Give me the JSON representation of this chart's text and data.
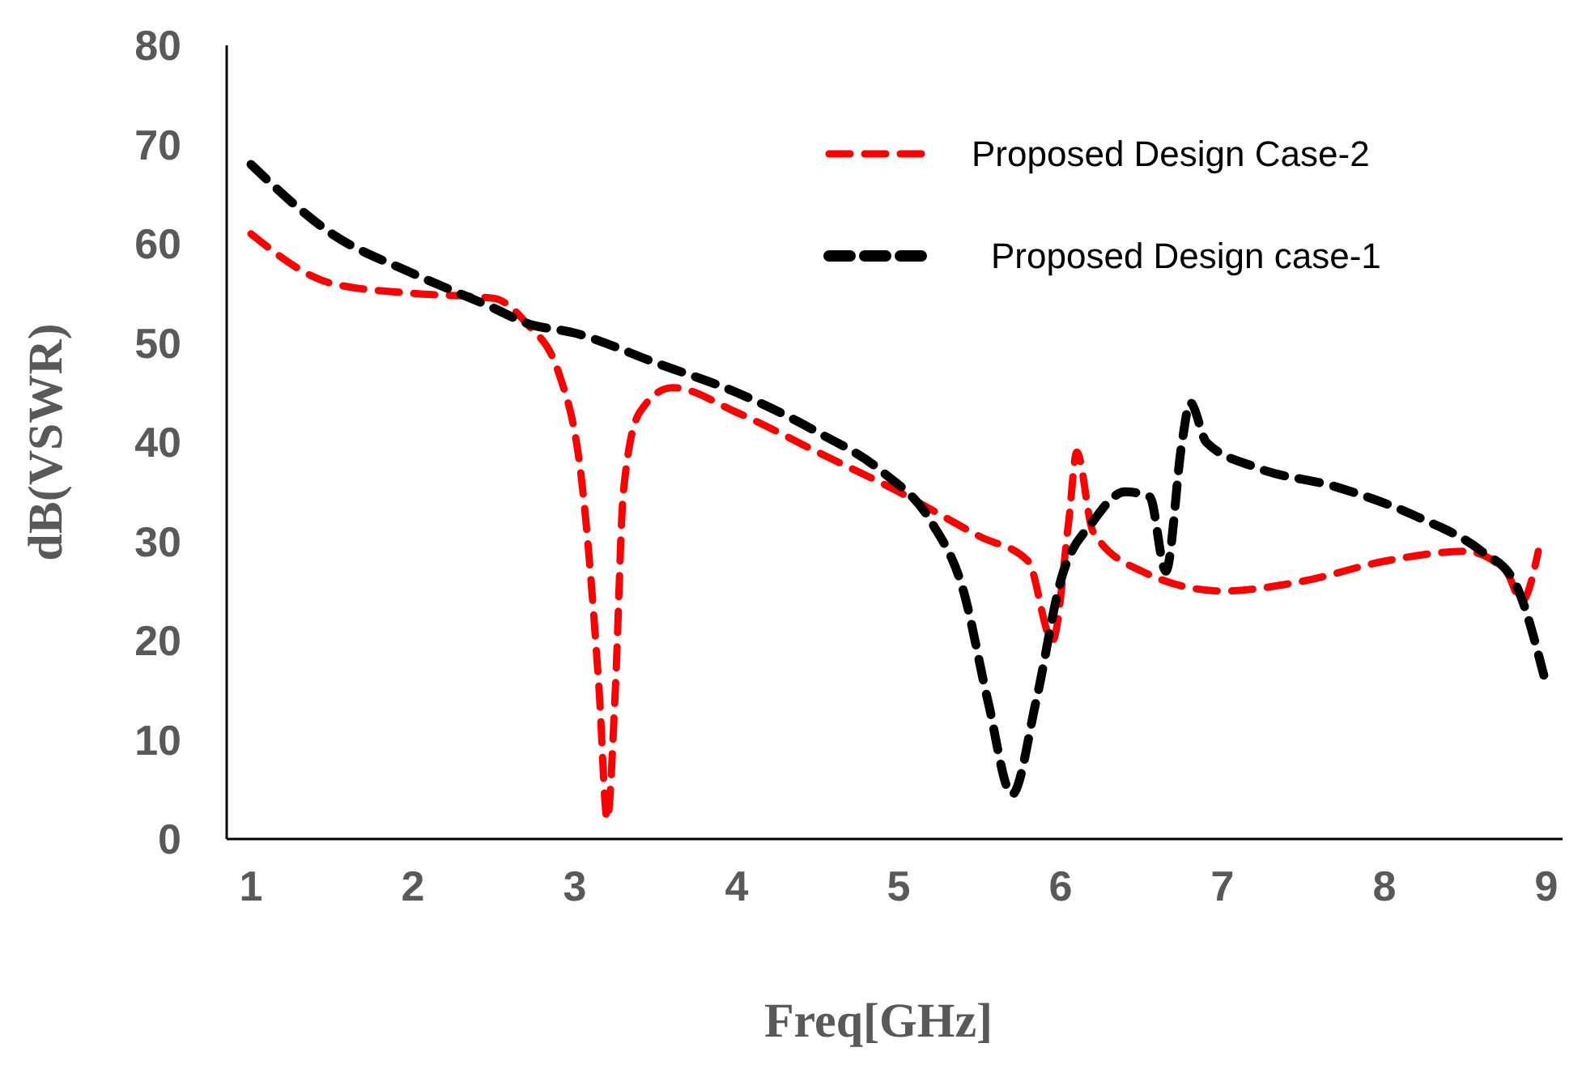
{
  "chart_data": {
    "type": "line",
    "xlabel": "Freq[GHz]",
    "ylabel": "dB(VSWR)",
    "xlim": [
      0.85,
      9.1
    ],
    "xticks": [
      1,
      2,
      3,
      4,
      5,
      6,
      7,
      8,
      9
    ],
    "ylim": [
      0,
      80
    ],
    "yticks": [
      0,
      10,
      20,
      30,
      40,
      50,
      60,
      70,
      80
    ],
    "grid": false,
    "legend": "top right",
    "line_style": "dashed",
    "series": [
      {
        "name": "Proposed Design Case-2",
        "color": "#ff0000",
        "x": [
          1.0,
          1.5,
          2.0,
          2.5,
          2.7,
          2.9,
          3.05,
          3.15,
          3.2,
          3.25,
          3.3,
          3.4,
          3.6,
          4.0,
          4.5,
          5.0,
          5.5,
          5.8,
          5.95,
          6.05,
          6.1,
          6.2,
          6.5,
          7.0,
          7.5,
          8.0,
          8.5,
          8.75,
          8.85,
          8.95
        ],
        "values": [
          61,
          56,
          55,
          54.5,
          52,
          47,
          35,
          15,
          2,
          15,
          35,
          43,
          45.5,
          43,
          39,
          35,
          30.5,
          28,
          20,
          32,
          39,
          31,
          27,
          25,
          26,
          28,
          29,
          27,
          24,
          29
        ]
      },
      {
        "name": "Proposed Design case-1",
        "color": "#000000",
        "x": [
          1.0,
          1.5,
          2.0,
          2.5,
          2.7,
          3.0,
          3.5,
          4.0,
          4.5,
          4.9,
          5.2,
          5.4,
          5.55,
          5.7,
          5.85,
          6.0,
          6.2,
          6.4,
          6.55,
          6.65,
          6.75,
          6.8,
          6.9,
          7.2,
          7.7,
          8.2,
          8.6,
          8.8,
          9.0
        ],
        "values": [
          68,
          61,
          57,
          53.5,
          52,
          51,
          48,
          45,
          41,
          37,
          32,
          25,
          14,
          4.5,
          14,
          26,
          32,
          35,
          34.5,
          27,
          40,
          44,
          40,
          37.5,
          35.5,
          32.5,
          29,
          26,
          15.5
        ]
      }
    ]
  }
}
